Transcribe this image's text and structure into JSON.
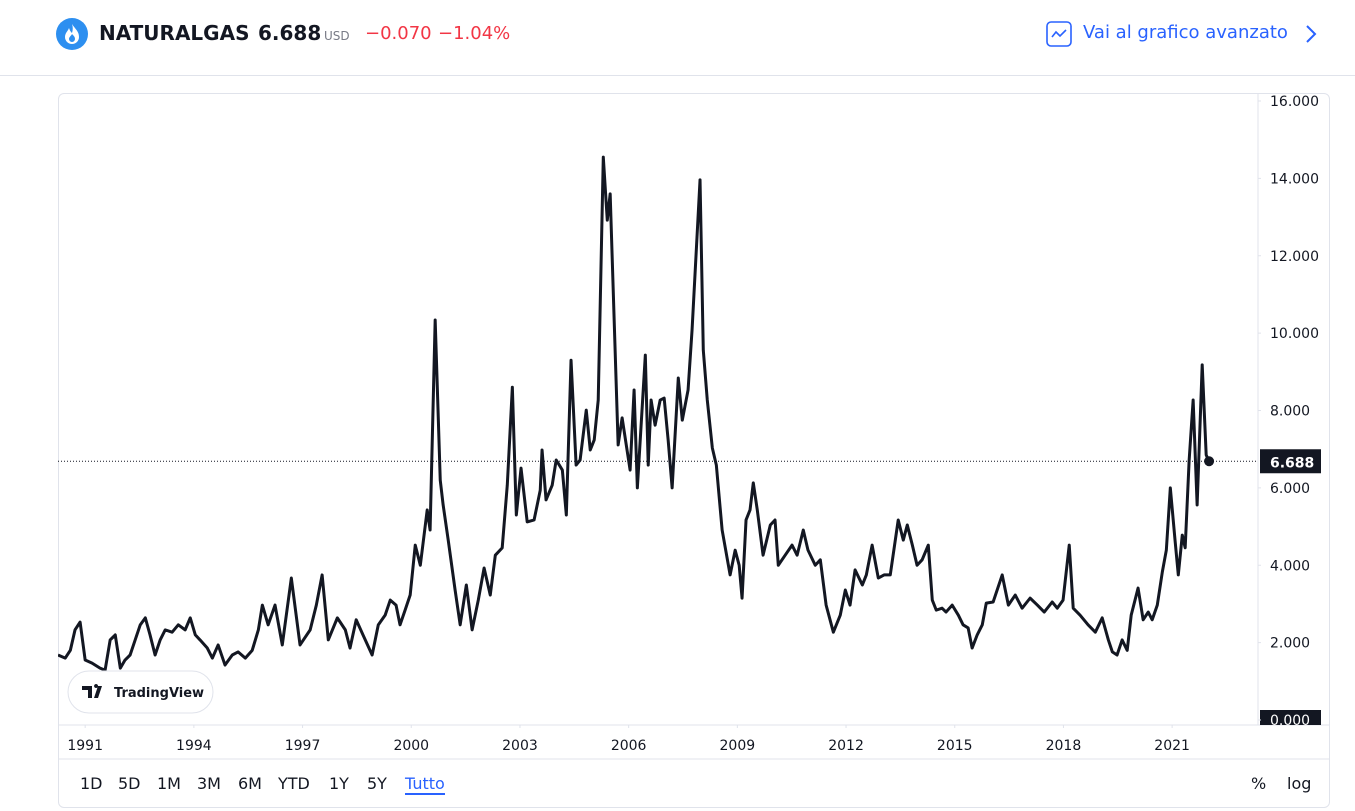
{
  "header": {
    "symbol": "NATURALGAS",
    "price": "6.688",
    "currency": "USD",
    "change": "−0.070",
    "change_percent": "−1.04%",
    "advanced_link": "Vai al grafico avanzato"
  },
  "chart_data": {
    "type": "line",
    "x": [
      1990.25,
      1990.45,
      1990.59,
      1990.72,
      1990.86,
      1991.0,
      1991.19,
      1991.41,
      1991.55,
      1991.69,
      1991.83,
      1991.97,
      1992.1,
      1992.24,
      1992.38,
      1992.52,
      1992.66,
      1992.79,
      1992.93,
      1993.07,
      1993.21,
      1993.4,
      1993.57,
      1993.76,
      1993.9,
      1994.04,
      1994.17,
      1994.37,
      1994.51,
      1994.67,
      1994.86,
      1995.06,
      1995.22,
      1995.42,
      1995.61,
      1995.78,
      1995.89,
      1996.05,
      1996.24,
      1996.44,
      1996.69,
      1996.93,
      1997.21,
      1997.38,
      1997.54,
      1997.71,
      1997.96,
      1998.18,
      1998.31,
      1998.48,
      1998.73,
      1998.92,
      1999.09,
      1999.28,
      1999.42,
      1999.58,
      1999.69,
      1999.83,
      1999.97,
      2000.11,
      2000.25,
      2000.44,
      2000.52,
      2000.66,
      2000.8,
      2000.88,
      2001.02,
      2001.21,
      2001.35,
      2001.52,
      2001.68,
      2001.85,
      2002.01,
      2002.18,
      2002.32,
      2002.51,
      2002.65,
      2002.79,
      2002.9,
      2003.03,
      2003.2,
      2003.39,
      2003.56,
      2003.61,
      2003.72,
      2003.89,
      2004.0,
      2004.17,
      2004.28,
      2004.41,
      2004.55,
      2004.66,
      2004.83,
      2004.94,
      2005.05,
      2005.16,
      2005.3,
      2005.41,
      2005.49,
      2005.6,
      2005.71,
      2005.82,
      2006.04,
      2006.15,
      2006.24,
      2006.46,
      2006.54,
      2006.62,
      2006.73,
      2006.87,
      2006.98,
      2007.09,
      2007.2,
      2007.37,
      2007.48,
      2007.64,
      2007.75,
      2007.97,
      2008.06,
      2008.17,
      2008.31,
      2008.42,
      2008.58,
      2008.8,
      2008.94,
      2009.05,
      2009.13,
      2009.24,
      2009.35,
      2009.44,
      2009.55,
      2009.71,
      2009.91,
      2010.04,
      2010.13,
      2010.32,
      2010.51,
      2010.65,
      2010.82,
      2010.95,
      2011.15,
      2011.29,
      2011.45,
      2011.65,
      2011.84,
      2011.98,
      2012.11,
      2012.25,
      2012.45,
      2012.56,
      2012.72,
      2012.89,
      2013.05,
      2013.22,
      2013.44,
      2013.58,
      2013.69,
      2013.83,
      2013.96,
      2014.1,
      2014.27,
      2014.38,
      2014.49,
      2014.65,
      2014.76,
      2014.93,
      2015.1,
      2015.23,
      2015.37,
      2015.48,
      2015.62,
      2015.76,
      2015.87,
      2016.06,
      2016.31,
      2016.48,
      2016.67,
      2016.86,
      2017.08,
      2017.28,
      2017.47,
      2017.69,
      2017.83,
      2017.99,
      2018.16,
      2018.27,
      2018.46,
      2018.68,
      2018.88,
      2019.07,
      2019.24,
      2019.35,
      2019.48,
      2019.62,
      2019.76,
      2019.87,
      2020.06,
      2020.2,
      2020.34,
      2020.45,
      2020.59,
      2020.73,
      2020.84,
      2020.95,
      2021.08,
      2021.17,
      2021.28,
      2021.36,
      2021.47,
      2021.58,
      2021.69,
      2021.83,
      2021.94,
      2022.02
    ],
    "series": [
      {
        "color": "#131722",
        "values": [
          1.68,
          1.6,
          1.8,
          2.33,
          2.53,
          1.55,
          1.47,
          1.34,
          1.29,
          2.07,
          2.2,
          1.34,
          1.55,
          1.68,
          2.07,
          2.46,
          2.64,
          2.2,
          1.68,
          2.07,
          2.33,
          2.27,
          2.46,
          2.33,
          2.64,
          2.2,
          2.07,
          1.86,
          1.6,
          1.94,
          1.42,
          1.68,
          1.76,
          1.6,
          1.8,
          2.33,
          2.97,
          2.46,
          2.97,
          1.94,
          3.67,
          1.94,
          2.33,
          2.97,
          3.75,
          2.07,
          2.64,
          2.33,
          1.86,
          2.59,
          2.07,
          1.68,
          2.46,
          2.71,
          3.1,
          2.97,
          2.46,
          2.84,
          3.23,
          4.52,
          4.0,
          5.43,
          4.91,
          10.34,
          6.2,
          5.56,
          4.65,
          3.36,
          2.46,
          3.49,
          2.33,
          3.1,
          3.93,
          3.23,
          4.26,
          4.45,
          6.07,
          8.6,
          5.3,
          6.51,
          5.12,
          5.17,
          5.94,
          6.98,
          5.69,
          6.07,
          6.72,
          6.46,
          5.3,
          9.3,
          6.59,
          6.72,
          8.01,
          6.98,
          7.24,
          8.27,
          14.55,
          12.92,
          13.6,
          10.34,
          7.11,
          7.81,
          6.46,
          8.53,
          6.0,
          9.43,
          6.59,
          8.27,
          7.62,
          8.27,
          8.32,
          7.24,
          6.0,
          8.84,
          7.75,
          8.53,
          10.08,
          13.96,
          9.56,
          8.27,
          7.03,
          6.59,
          4.91,
          3.75,
          4.39,
          4.0,
          3.15,
          5.17,
          5.43,
          6.13,
          5.43,
          4.26,
          5.04,
          5.17,
          4.0,
          4.26,
          4.52,
          4.26,
          4.91,
          4.39,
          4.0,
          4.14,
          2.97,
          2.27,
          2.71,
          3.36,
          2.97,
          3.88,
          3.49,
          3.75,
          4.52,
          3.67,
          3.75,
          3.75,
          5.17,
          4.65,
          5.04,
          4.52,
          4.0,
          4.14,
          4.52,
          3.1,
          2.84,
          2.89,
          2.79,
          2.97,
          2.71,
          2.46,
          2.38,
          1.86,
          2.2,
          2.46,
          3.02,
          3.05,
          3.75,
          2.97,
          3.23,
          2.89,
          3.15,
          2.97,
          2.79,
          3.05,
          2.89,
          3.1,
          4.52,
          2.89,
          2.71,
          2.46,
          2.27,
          2.64,
          2.07,
          1.76,
          1.68,
          2.07,
          1.8,
          2.71,
          3.41,
          2.59,
          2.79,
          2.59,
          2.97,
          3.83,
          4.39,
          6.0,
          4.65,
          3.75,
          4.78,
          4.45,
          6.72,
          8.27,
          5.56,
          9.18,
          6.85,
          6.688
        ]
      }
    ],
    "xlim": [
      1990.25,
      2023.37
    ],
    "xticks": [
      1991,
      1994,
      1997,
      2000,
      2003,
      2006,
      2009,
      2012,
      2015,
      2018,
      2021
    ],
    "ylim": [
      0,
      16
    ],
    "yticks": [
      {
        "value": 0,
        "label": "0.000"
      },
      {
        "value": 2,
        "label": "2.000"
      },
      {
        "value": 4,
        "label": "4.000"
      },
      {
        "value": 6,
        "label": "6.000"
      },
      {
        "value": 8,
        "label": "8.000"
      },
      {
        "value": 10,
        "label": "10.000"
      },
      {
        "value": 12,
        "label": "12.000"
      },
      {
        "value": 14,
        "label": "14.000"
      },
      {
        "value": 16,
        "label": "16.000"
      }
    ],
    "grid": false,
    "line_width": 3
  },
  "watermark": "TradingView",
  "range_buttons": [
    "1D",
    "5D",
    "1M",
    "3M",
    "6M",
    "YTD",
    "1Y",
    "5Y",
    "Tutto"
  ],
  "active_range": 8,
  "scale_buttons": [
    "%",
    "log"
  ]
}
